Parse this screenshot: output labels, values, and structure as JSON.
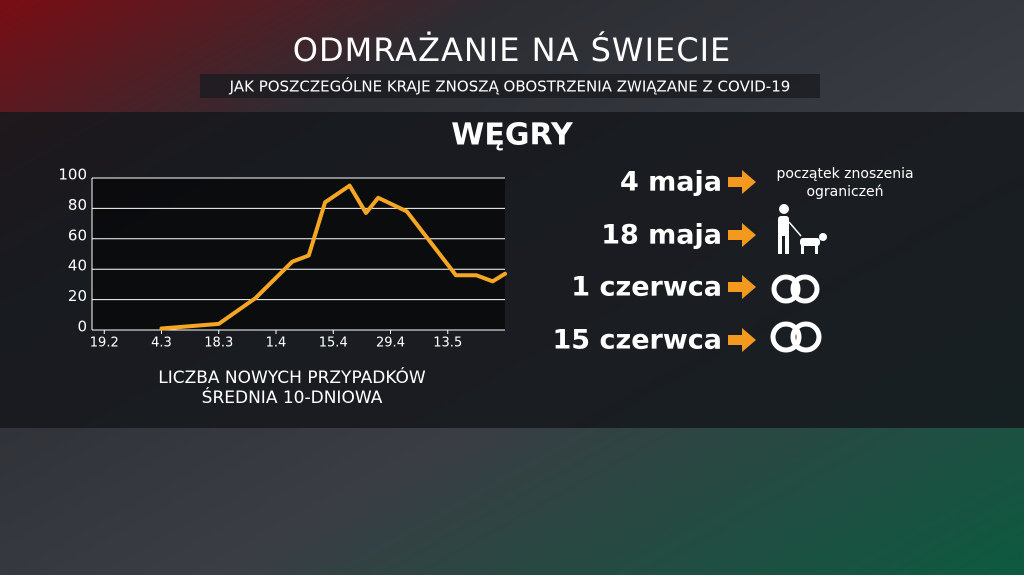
{
  "header": {
    "title": "ODMRAŻANIE NA ŚWIECIE",
    "subtitle": "JAK POSZCZEGÓLNE KRAJE ZNOSZĄ OBOSTRZENIA ZWIĄZANE Z COVID-19"
  },
  "country": "WĘGRY",
  "chart_data": {
    "type": "line",
    "caption": [
      "LICZBA NOWYCH PRZYPADKÓW",
      "ŚREDNIA 10-DNIOWA"
    ],
    "x": [
      64,
      78,
      87,
      96,
      100,
      104,
      110,
      114,
      117,
      124,
      136,
      141,
      145,
      148
    ],
    "values": [
      1,
      4,
      21,
      45,
      49,
      84,
      95,
      77,
      87,
      78,
      36,
      36,
      32,
      37
    ],
    "color": "#f5a623",
    "xlim": [
      47,
      148
    ],
    "ylim": [
      0,
      100
    ],
    "xticks": [
      {
        "value": 50,
        "label": "19.2"
      },
      {
        "value": 64,
        "label": "4.3"
      },
      {
        "value": 78,
        "label": "18.3"
      },
      {
        "value": 92,
        "label": "1.4"
      },
      {
        "value": 106,
        "label": "15.4"
      },
      {
        "value": 120,
        "label": "29.4"
      },
      {
        "value": 134,
        "label": "13.5"
      }
    ],
    "yticks": [
      0,
      20,
      40,
      60,
      80,
      100
    ],
    "grid": true
  },
  "timeline": [
    {
      "date": "4 maja",
      "note": [
        "początek znoszenia",
        "ograniczeń"
      ]
    },
    {
      "date": "18 maja"
    },
    {
      "date": "1 czerwca"
    },
    {
      "date": "15 czerwca"
    }
  ]
}
